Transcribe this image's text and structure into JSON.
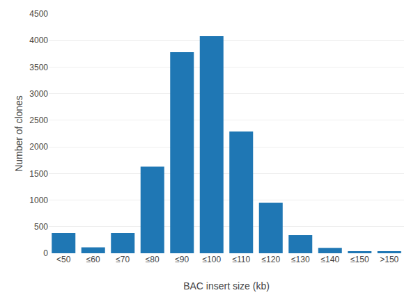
{
  "chart_data": {
    "type": "bar",
    "categories": [
      "<50",
      "≤60",
      "≤70",
      "≤80",
      "≤90",
      "≤100",
      "≤110",
      "≤120",
      "≤130",
      "≤140",
      "≤150",
      ">150"
    ],
    "values": [
      380,
      110,
      380,
      1630,
      3780,
      4080,
      2290,
      950,
      340,
      100,
      40,
      40
    ],
    "xlabel": "BAC insert size (kb)",
    "ylabel": "Number of clones",
    "ylim": [
      0,
      4500
    ],
    "yticks": [
      0,
      500,
      1000,
      1500,
      2000,
      2500,
      3000,
      3500,
      4000,
      4500
    ],
    "grid": true
  }
}
